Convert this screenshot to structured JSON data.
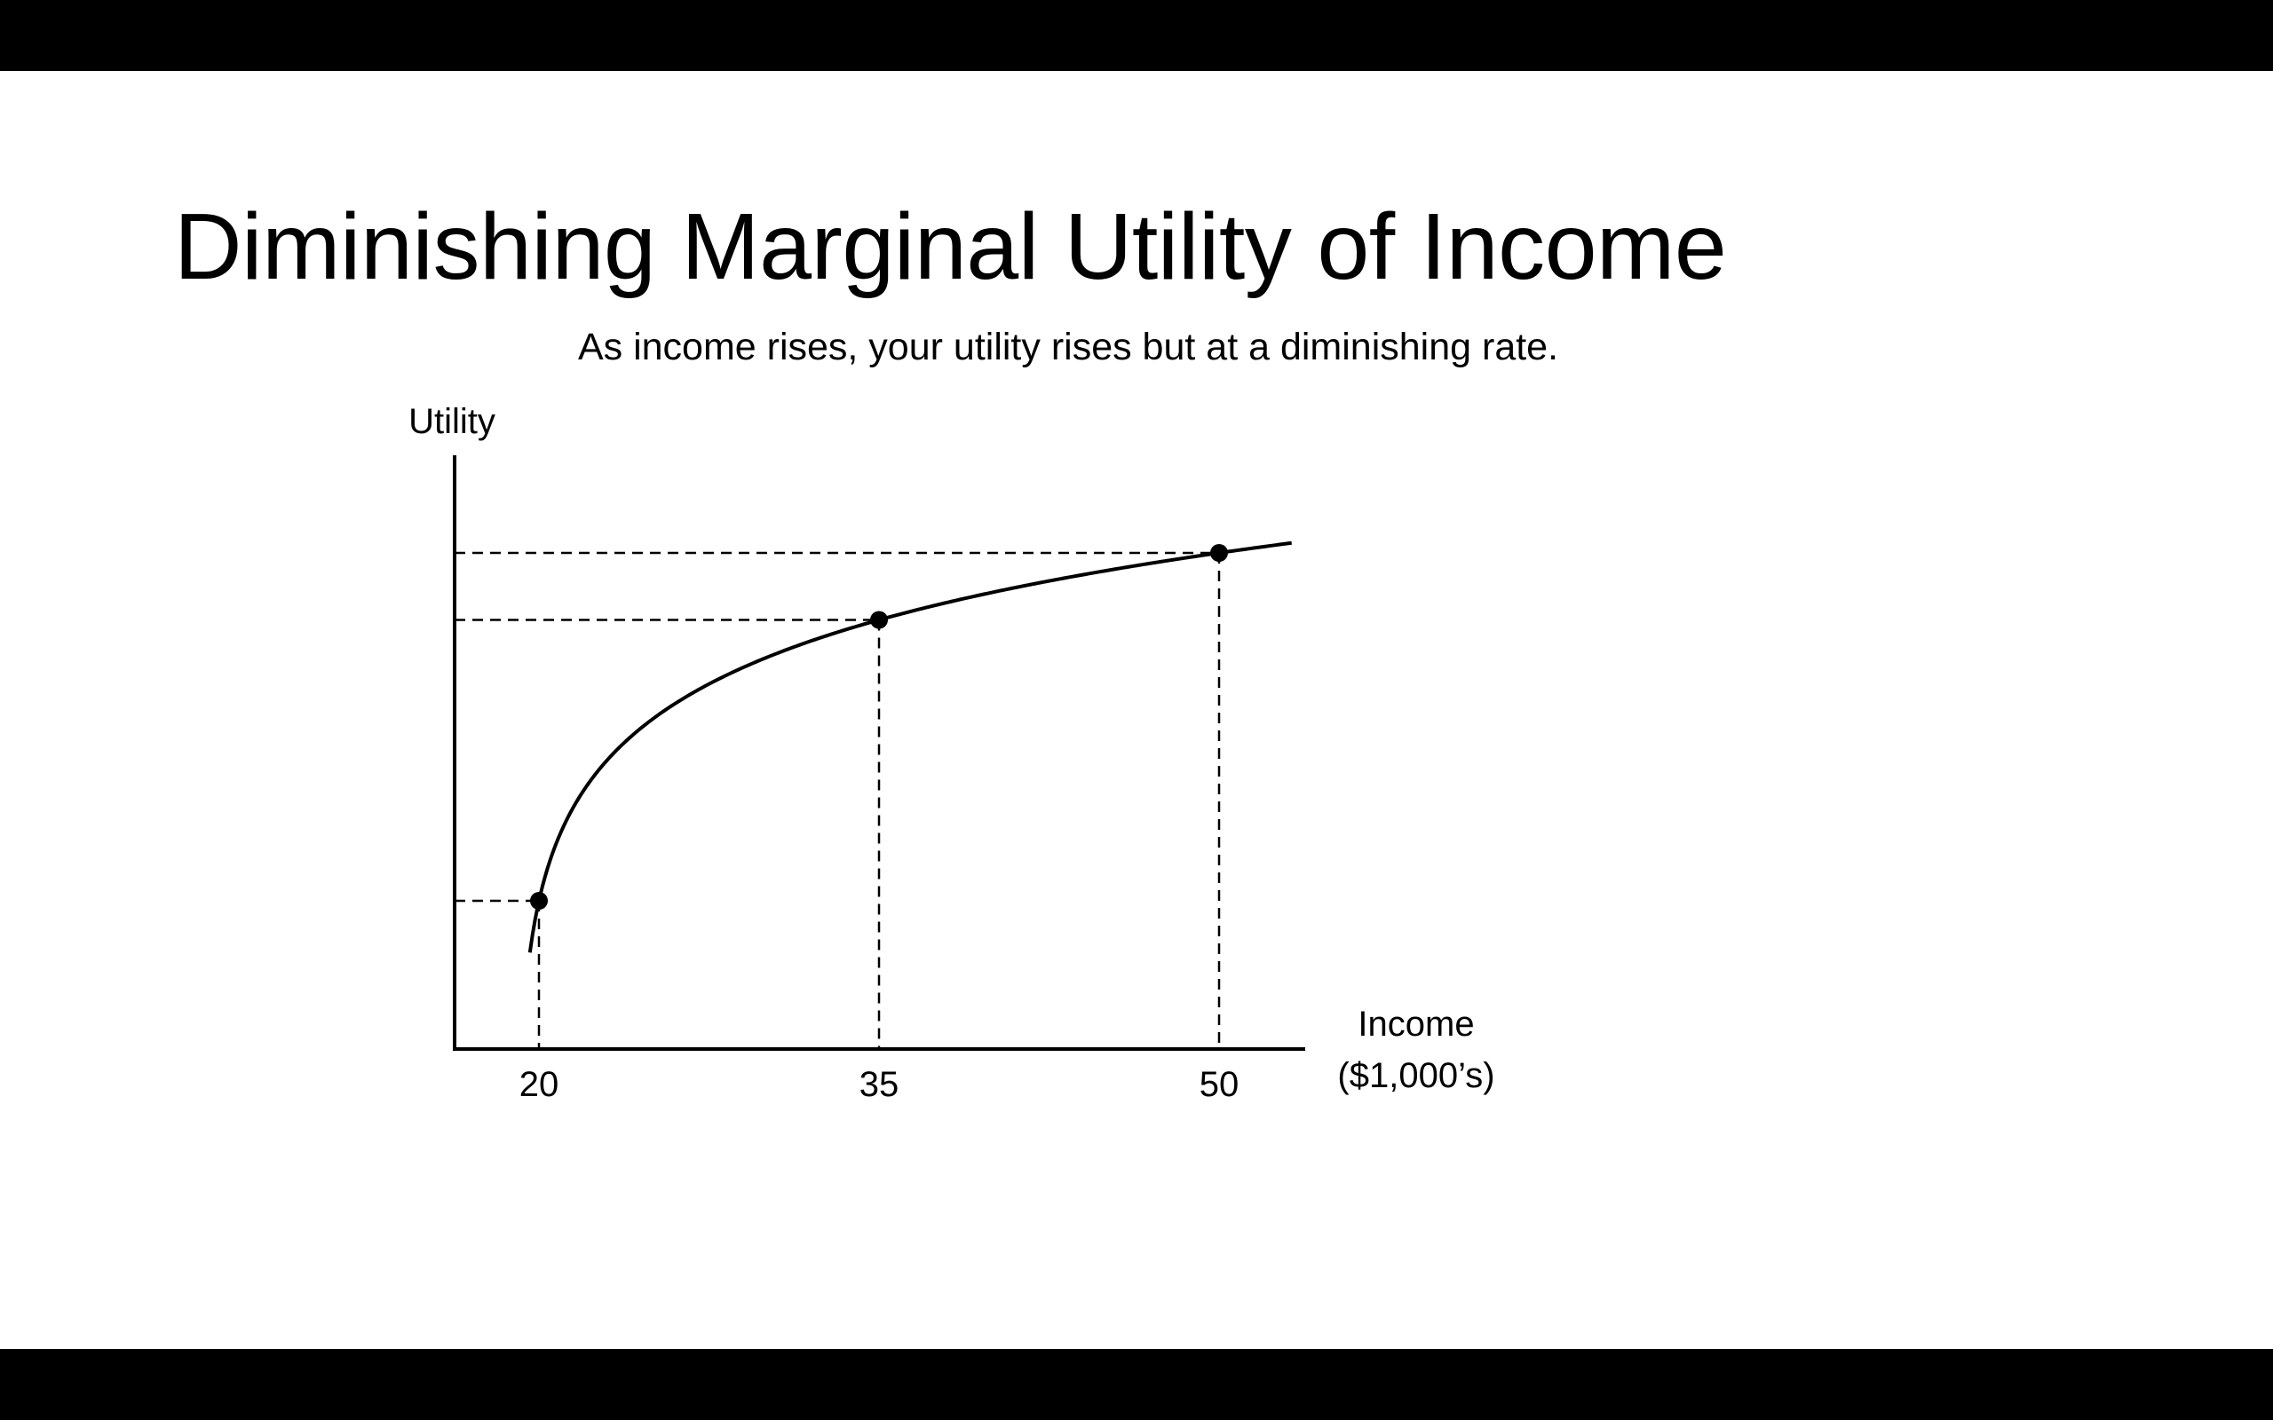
{
  "slide": {
    "title": "Diminishing Marginal Utility of Income",
    "subtitle": "As income rises, your utility rises but at a diminishing rate."
  },
  "colors": {
    "background": "#ffffff",
    "letterbox": "#000000",
    "ink": "#000000"
  },
  "chart_data": {
    "type": "line",
    "ylabel": "Utility",
    "xlabel_line1": "Income",
    "xlabel_line2": "($1,000’s)",
    "x_ticks": [
      "20",
      "35",
      "50"
    ],
    "points": [
      {
        "x": 20,
        "label": "20"
      },
      {
        "x": 35,
        "label": "35"
      },
      {
        "x": 50,
        "label": "50"
      }
    ],
    "curve": "concave increasing (diminishing marginal utility)",
    "guides": "dashed lines from each point to both axes",
    "grid": false,
    "legend": "none"
  }
}
